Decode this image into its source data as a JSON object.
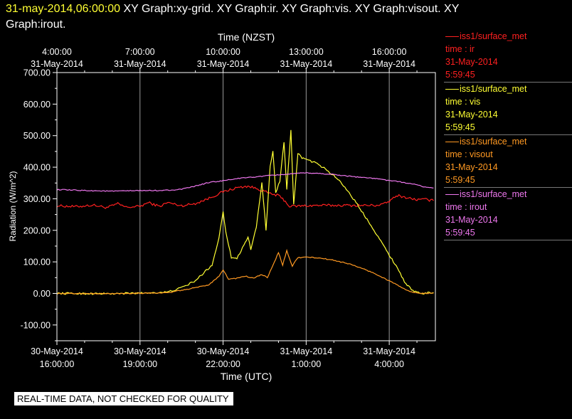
{
  "header": {
    "timestamp": "31-may-2014,06:00:00",
    "title_line1": "XY Graph:xy-grid.  XY Graph:ir.  XY Graph:vis.  XY Graph:visout.  XY",
    "title_line2": "Graph:irout."
  },
  "footer": {
    "text": "REAL-TIME DATA, NOT CHECKED FOR QUALITY"
  },
  "legend": [
    {
      "name": "iss1/surface_met",
      "var": "time : ir",
      "date": "31-May-2014",
      "time": "5:59:45",
      "color": "#ff2020"
    },
    {
      "name": "iss1/surface_met",
      "var": "time : vis",
      "date": "31-May-2014",
      "time": "5:59:45",
      "color": "#ffff33"
    },
    {
      "name": "iss1/surface_met",
      "var": "time : visout",
      "date": "31-May-2014",
      "time": "5:59:45",
      "color": "#ff9922"
    },
    {
      "name": "iss1/surface_met",
      "var": "time : irout",
      "date": "31-May-2014",
      "time": "5:59:45",
      "color": "#ee77ee"
    }
  ],
  "chart_data": {
    "type": "line",
    "xlabel": "Time (UTC)",
    "x2label": "Time (NZST)",
    "ylabel": "Radiation  (W/m^2)",
    "ylim": [
      -150,
      700
    ],
    "xlim": [
      "30-May-2014 16:00",
      "31-May-2014 05:40"
    ],
    "yticks": [
      "-100.00",
      "0.00",
      "100.00",
      "200.00",
      "300.00",
      "400.00",
      "500.00",
      "600.00",
      "700.00"
    ],
    "ytick_values": [
      -100,
      0,
      100,
      200,
      300,
      400,
      500,
      600,
      700
    ],
    "xticks": [
      {
        "t": 16,
        "date": "30-May-2014",
        "time": "16:00:00"
      },
      {
        "t": 19,
        "date": "30-May-2014",
        "time": "19:00:00"
      },
      {
        "t": 22,
        "date": "30-May-2014",
        "time": "22:00:00"
      },
      {
        "t": 25,
        "date": "31-May-2014",
        "time": "1:00:00"
      },
      {
        "t": 28,
        "date": "31-May-2014",
        "time": "4:00:00"
      }
    ],
    "x2ticks": [
      {
        "t": 16,
        "time": "4:00:00",
        "date": "31-May-2014"
      },
      {
        "t": 19,
        "time": "7:00:00",
        "date": "31-May-2014"
      },
      {
        "t": 22,
        "time": "10:00:00",
        "date": "31-May-2014"
      },
      {
        "t": 25,
        "time": "13:00:00",
        "date": "31-May-2014"
      },
      {
        "t": 28,
        "time": "16:00:00",
        "date": "31-May-2014"
      }
    ],
    "grid": true,
    "series": [
      {
        "name": "ir",
        "color": "#ff2020",
        "noise": 4,
        "points": [
          [
            16,
            278
          ],
          [
            16.7,
            275
          ],
          [
            17.3,
            280
          ],
          [
            17.8,
            272
          ],
          [
            18.2,
            284
          ],
          [
            18.5,
            273
          ],
          [
            19,
            276
          ],
          [
            19.3,
            288
          ],
          [
            19.7,
            276
          ],
          [
            20,
            288
          ],
          [
            20.5,
            278
          ],
          [
            21,
            285
          ],
          [
            21.5,
            302
          ],
          [
            22,
            322
          ],
          [
            22.5,
            335
          ],
          [
            22.9,
            340
          ],
          [
            23.3,
            330
          ],
          [
            23.7,
            316
          ],
          [
            24,
            310
          ],
          [
            24.2,
            296
          ],
          [
            24.4,
            276
          ],
          [
            24.7,
            277
          ],
          [
            25,
            278
          ],
          [
            25.5,
            279
          ],
          [
            26,
            279
          ],
          [
            27,
            279
          ],
          [
            27.5,
            279
          ],
          [
            27.8,
            283
          ],
          [
            28,
            292
          ],
          [
            28.3,
            311
          ],
          [
            28.6,
            304
          ],
          [
            29,
            297
          ],
          [
            29.3,
            298
          ],
          [
            29.6,
            294
          ]
        ]
      },
      {
        "name": "vis",
        "color": "#ffff33",
        "noise": 3,
        "points": [
          [
            16,
            0
          ],
          [
            18,
            -1
          ],
          [
            19,
            1
          ],
          [
            20,
            4
          ],
          [
            20.5,
            18
          ],
          [
            21,
            40
          ],
          [
            21.3,
            65
          ],
          [
            21.6,
            90
          ],
          [
            21.85,
            175
          ],
          [
            22,
            260
          ],
          [
            22.1,
            195
          ],
          [
            22.3,
            115
          ],
          [
            22.5,
            110
          ],
          [
            22.7,
            145
          ],
          [
            22.9,
            180
          ],
          [
            23,
            140
          ],
          [
            23.2,
            210
          ],
          [
            23.4,
            350
          ],
          [
            23.55,
            200
          ],
          [
            23.7,
            400
          ],
          [
            23.8,
            450
          ],
          [
            23.9,
            320
          ],
          [
            24.05,
            355
          ],
          [
            24.2,
            480
          ],
          [
            24.3,
            330
          ],
          [
            24.45,
            515
          ],
          [
            24.55,
            280
          ],
          [
            24.7,
            445
          ],
          [
            24.85,
            430
          ],
          [
            25,
            425
          ],
          [
            25.3,
            415
          ],
          [
            25.6,
            400
          ],
          [
            25.9,
            380
          ],
          [
            26.2,
            358
          ],
          [
            26.5,
            325
          ],
          [
            26.8,
            288
          ],
          [
            27.1,
            248
          ],
          [
            27.4,
            208
          ],
          [
            27.7,
            165
          ],
          [
            28,
            122
          ],
          [
            28.3,
            80
          ],
          [
            28.6,
            30
          ],
          [
            28.9,
            5
          ],
          [
            29.2,
            0
          ],
          [
            29.6,
            3
          ]
        ]
      },
      {
        "name": "visout",
        "color": "#ff9922",
        "noise": 1.5,
        "points": [
          [
            16,
            0
          ],
          [
            18,
            -1
          ],
          [
            19,
            1
          ],
          [
            20,
            2
          ],
          [
            20.5,
            10
          ],
          [
            21,
            18
          ],
          [
            21.5,
            28
          ],
          [
            21.85,
            55
          ],
          [
            22,
            75
          ],
          [
            22.2,
            45
          ],
          [
            22.5,
            48
          ],
          [
            22.8,
            55
          ],
          [
            23.1,
            48
          ],
          [
            23.4,
            60
          ],
          [
            23.6,
            50
          ],
          [
            23.8,
            88
          ],
          [
            24,
            130
          ],
          [
            24.15,
            90
          ],
          [
            24.3,
            135
          ],
          [
            24.5,
            85
          ],
          [
            24.6,
            103
          ],
          [
            24.7,
            113
          ],
          [
            25,
            115
          ],
          [
            25.5,
            112
          ],
          [
            26,
            105
          ],
          [
            26.5,
            95
          ],
          [
            27,
            80
          ],
          [
            27.5,
            62
          ],
          [
            28,
            40
          ],
          [
            28.4,
            22
          ],
          [
            28.6,
            10
          ],
          [
            28.9,
            2
          ],
          [
            29.2,
            0
          ],
          [
            29.6,
            1
          ]
        ]
      },
      {
        "name": "irout",
        "color": "#ee77ee",
        "noise": 1.5,
        "points": [
          [
            16,
            329
          ],
          [
            16.7,
            327
          ],
          [
            17.5,
            325
          ],
          [
            18,
            324
          ],
          [
            18.5,
            325
          ],
          [
            19,
            326
          ],
          [
            19.5,
            326
          ],
          [
            20,
            327
          ],
          [
            20.5,
            330
          ],
          [
            21,
            340
          ],
          [
            21.5,
            352
          ],
          [
            22,
            357
          ],
          [
            22.5,
            364
          ],
          [
            23,
            368
          ],
          [
            23.5,
            372
          ],
          [
            24,
            376
          ],
          [
            24.5,
            379
          ],
          [
            25,
            382
          ],
          [
            25.5,
            380
          ],
          [
            26,
            377
          ],
          [
            26.5,
            372
          ],
          [
            27,
            368
          ],
          [
            27.5,
            364
          ],
          [
            28,
            358
          ],
          [
            28.5,
            352
          ],
          [
            29,
            344
          ],
          [
            29.3,
            337
          ],
          [
            29.6,
            334
          ]
        ]
      }
    ]
  }
}
